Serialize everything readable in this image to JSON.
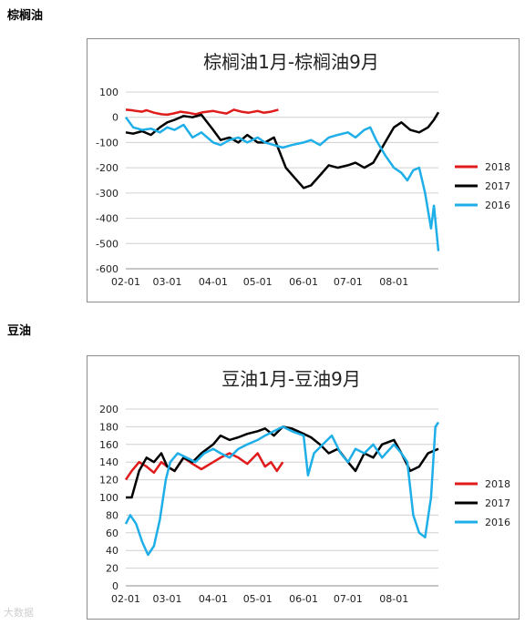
{
  "sections": [
    {
      "label": "棕榈油"
    },
    {
      "label": "豆油"
    }
  ],
  "watermark": "大数据",
  "chart_data": [
    {
      "type": "line",
      "title": "棕榈油1月-棕榈油9月",
      "xlabel": "",
      "ylabel": "",
      "ylim": [
        -600,
        100
      ],
      "yticks": [
        100,
        0,
        -100,
        -200,
        -300,
        -400,
        -500,
        -600
      ],
      "x_tick_labels": [
        "02-01",
        "03-01",
        "04-01",
        "05-01",
        "06-01",
        "07-01",
        "08-01"
      ],
      "x_range": [
        "02-01",
        "08-31"
      ],
      "legend_position": "right",
      "grid": true,
      "series": [
        {
          "name": "2018",
          "color": "#e01b1b",
          "x": [
            "02-01",
            "02-05",
            "02-08",
            "02-12",
            "02-15",
            "02-20",
            "02-25",
            "03-01",
            "03-05",
            "03-10",
            "03-15",
            "03-20",
            "03-25",
            "04-01",
            "04-05",
            "04-10",
            "04-15",
            "04-20",
            "04-25",
            "05-01",
            "05-05",
            "05-10",
            "05-15"
          ],
          "y": [
            30,
            28,
            25,
            22,
            28,
            18,
            12,
            10,
            15,
            22,
            18,
            12,
            20,
            25,
            20,
            15,
            30,
            22,
            18,
            25,
            18,
            22,
            30
          ]
        },
        {
          "name": "2017",
          "color": "#000000",
          "x": [
            "02-01",
            "02-06",
            "02-12",
            "02-18",
            "02-24",
            "03-01",
            "03-06",
            "03-12",
            "03-18",
            "03-24",
            "04-01",
            "04-06",
            "04-12",
            "04-18",
            "04-24",
            "05-01",
            "05-06",
            "05-12",
            "05-16",
            "05-20",
            "05-26",
            "06-01",
            "06-06",
            "06-12",
            "06-18",
            "06-24",
            "07-01",
            "07-06",
            "07-12",
            "07-18",
            "07-22",
            "07-26",
            "08-01",
            "08-06",
            "08-12",
            "08-18",
            "08-24",
            "08-28",
            "08-31"
          ],
          "y": [
            -60,
            -65,
            -55,
            -70,
            -40,
            -20,
            -10,
            5,
            0,
            10,
            -50,
            -90,
            -80,
            -100,
            -70,
            -100,
            -100,
            -80,
            -140,
            -200,
            -240,
            -280,
            -270,
            -230,
            -190,
            -200,
            -190,
            -180,
            -200,
            -180,
            -140,
            -100,
            -40,
            -20,
            -50,
            -60,
            -40,
            -10,
            20
          ]
        },
        {
          "name": "2016",
          "color": "#1eaee8",
          "x": [
            "02-01",
            "02-06",
            "02-12",
            "02-18",
            "02-24",
            "03-01",
            "03-06",
            "03-12",
            "03-18",
            "03-24",
            "04-01",
            "04-06",
            "04-12",
            "04-18",
            "04-24",
            "05-01",
            "05-06",
            "05-12",
            "05-18",
            "05-24",
            "06-01",
            "06-06",
            "06-12",
            "06-18",
            "06-24",
            "07-01",
            "07-06",
            "07-12",
            "07-16",
            "07-20",
            "07-26",
            "08-01",
            "08-06",
            "08-10",
            "08-14",
            "08-18",
            "08-22",
            "08-26",
            "08-28",
            "08-31"
          ],
          "y": [
            0,
            -40,
            -50,
            -45,
            -60,
            -40,
            -50,
            -30,
            -80,
            -60,
            -100,
            -110,
            -90,
            -80,
            -100,
            -80,
            -100,
            -110,
            -120,
            -110,
            -100,
            -90,
            -110,
            -80,
            -70,
            -60,
            -80,
            -50,
            -40,
            -90,
            -150,
            -200,
            -220,
            -250,
            -210,
            -200,
            -300,
            -440,
            -350,
            -530
          ]
        }
      ]
    },
    {
      "type": "line",
      "title": "豆油1月-豆油9月",
      "xlabel": "",
      "ylabel": "",
      "ylim": [
        0,
        200
      ],
      "yticks": [
        200,
        180,
        160,
        140,
        120,
        100,
        80,
        60,
        40,
        20,
        0
      ],
      "x_tick_labels": [
        "02-01",
        "03-01",
        "04-01",
        "05-01",
        "06-01",
        "07-01",
        "08-01"
      ],
      "x_range": [
        "02-01",
        "08-31"
      ],
      "legend_position": "right",
      "grid": true,
      "series": [
        {
          "name": "2018",
          "color": "#e01b1b",
          "x": [
            "02-01",
            "02-05",
            "02-10",
            "02-15",
            "02-20",
            "02-25",
            "03-01",
            "03-06",
            "03-12",
            "03-18",
            "03-24",
            "04-01",
            "04-06",
            "04-12",
            "04-18",
            "04-24",
            "05-01",
            "05-06",
            "05-10",
            "05-14",
            "05-18"
          ],
          "y": [
            120,
            130,
            140,
            135,
            128,
            140,
            135,
            130,
            145,
            138,
            132,
            140,
            145,
            150,
            145,
            138,
            150,
            135,
            140,
            130,
            140
          ]
        },
        {
          "name": "2017",
          "color": "#000000",
          "x": [
            "02-01",
            "02-05",
            "02-10",
            "02-15",
            "02-20",
            "02-25",
            "03-01",
            "03-06",
            "03-12",
            "03-18",
            "03-24",
            "04-01",
            "04-06",
            "04-12",
            "04-18",
            "04-24",
            "05-01",
            "05-06",
            "05-12",
            "05-18",
            "05-24",
            "06-01",
            "06-06",
            "06-12",
            "06-18",
            "06-24",
            "07-01",
            "07-06",
            "07-12",
            "07-18",
            "07-24",
            "08-01",
            "08-06",
            "08-12",
            "08-18",
            "08-24",
            "08-31"
          ],
          "y": [
            100,
            100,
            130,
            145,
            140,
            150,
            135,
            130,
            145,
            140,
            150,
            160,
            170,
            165,
            168,
            172,
            175,
            178,
            170,
            180,
            178,
            172,
            168,
            160,
            150,
            155,
            140,
            130,
            150,
            145,
            160,
            165,
            150,
            130,
            135,
            150,
            155
          ]
        },
        {
          "name": "2016",
          "color": "#1eaee8",
          "x": [
            "02-01",
            "02-04",
            "02-08",
            "02-12",
            "02-16",
            "02-20",
            "02-24",
            "02-28",
            "03-03",
            "03-08",
            "03-14",
            "03-20",
            "03-26",
            "04-01",
            "04-06",
            "04-12",
            "04-18",
            "04-24",
            "05-01",
            "05-06",
            "05-12",
            "05-18",
            "05-24",
            "06-01",
            "06-04",
            "06-08",
            "06-14",
            "06-20",
            "06-26",
            "07-01",
            "07-06",
            "07-12",
            "07-18",
            "07-24",
            "08-01",
            "08-06",
            "08-10",
            "08-14",
            "08-18",
            "08-22",
            "08-26",
            "08-29",
            "08-31"
          ],
          "y": [
            70,
            80,
            70,
            50,
            35,
            45,
            75,
            120,
            140,
            150,
            145,
            140,
            150,
            155,
            150,
            145,
            155,
            160,
            165,
            170,
            175,
            180,
            175,
            170,
            125,
            150,
            160,
            170,
            150,
            140,
            155,
            150,
            160,
            145,
            160,
            150,
            140,
            80,
            60,
            55,
            100,
            180,
            185
          ]
        }
      ]
    }
  ]
}
